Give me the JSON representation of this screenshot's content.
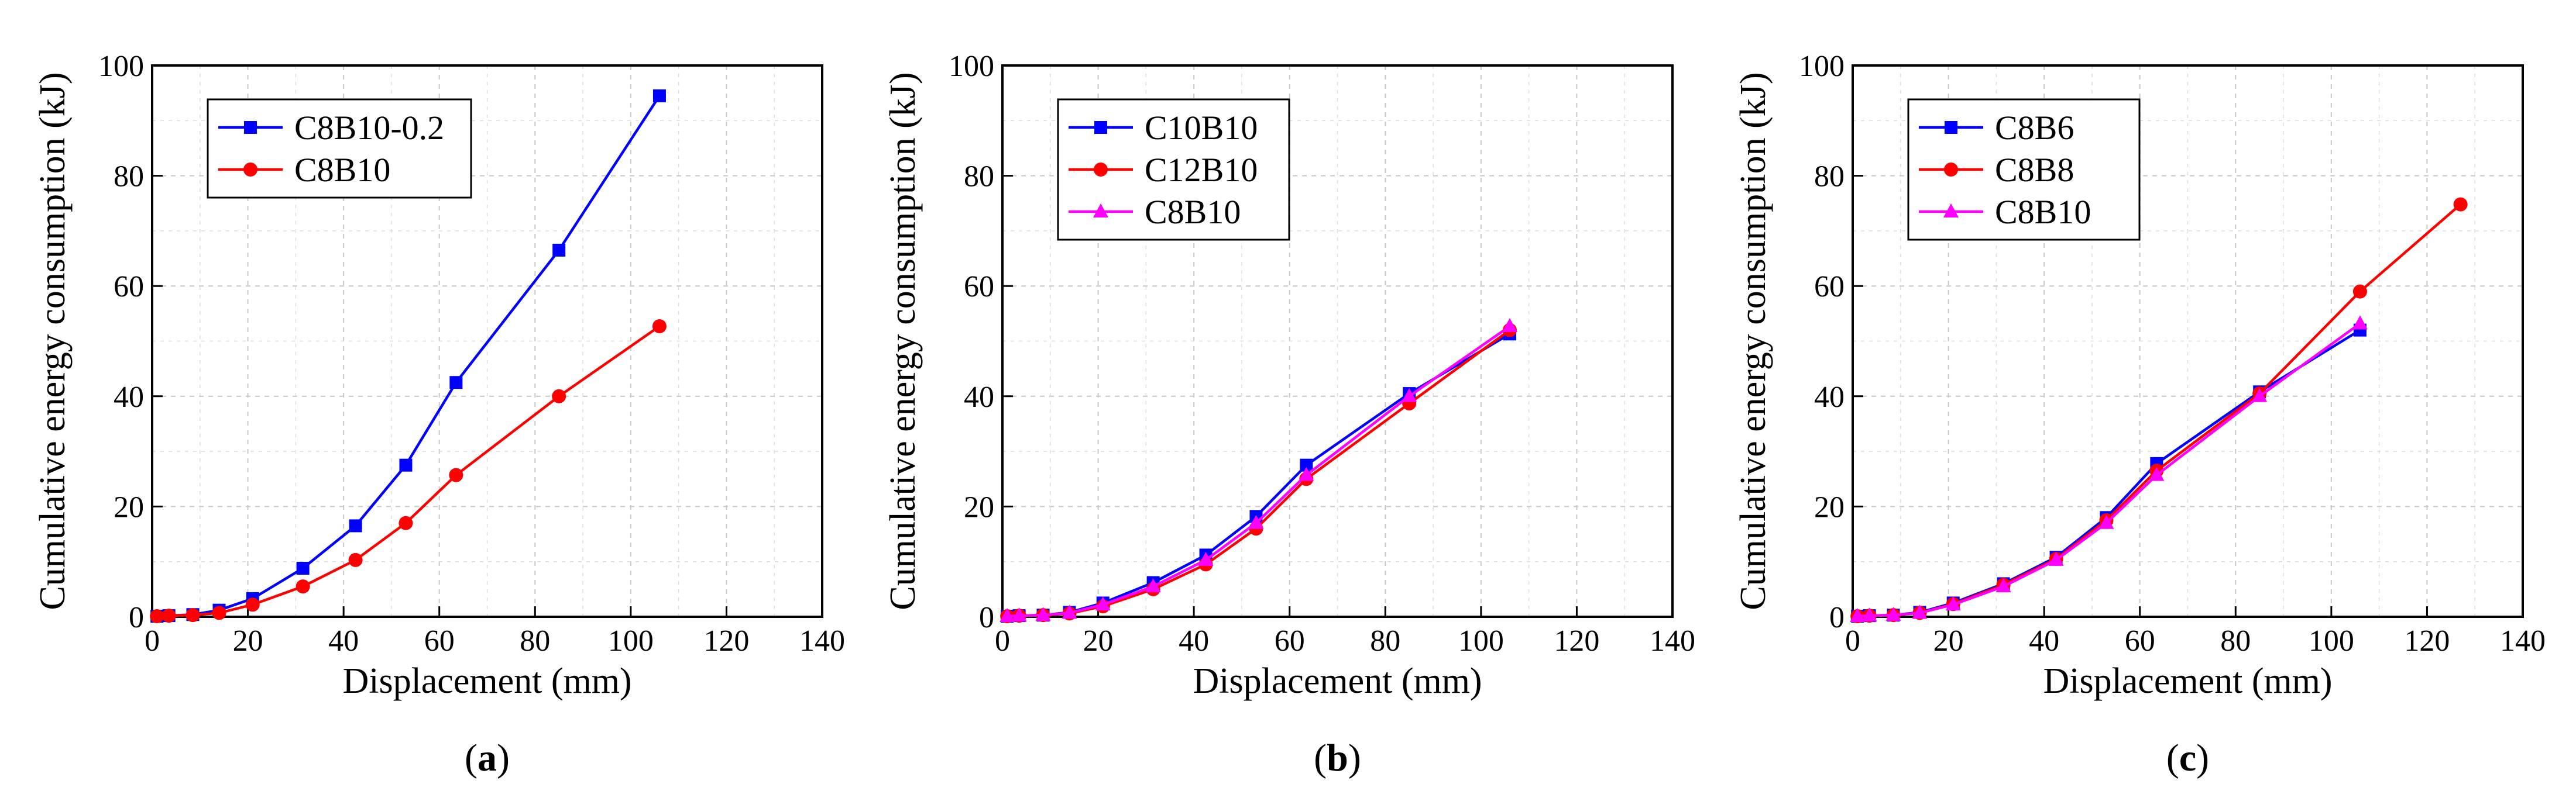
{
  "chart_data": [
    {
      "type": "line",
      "panel_label": "a",
      "xlabel": "Displacement (mm)",
      "ylabel": "Cumulative energy consumption (kJ)",
      "xlim": [
        0,
        140
      ],
      "ylim": [
        0,
        100
      ],
      "xticks": [
        0,
        20,
        40,
        60,
        80,
        100,
        120,
        140
      ],
      "yticks": [
        0,
        20,
        40,
        60,
        80,
        100
      ],
      "grid": true,
      "legend_position": "top-left",
      "series": [
        {
          "name": "C8B10-0.2",
          "color": "#0000ff",
          "marker": "square",
          "x": [
            1,
            3.5,
            8.5,
            14,
            21,
            31.5,
            42.5,
            53,
            63.5,
            85,
            106
          ],
          "y": [
            0.1,
            0.2,
            0.4,
            1.2,
            3.3,
            8.8,
            16.5,
            27.5,
            42.5,
            66.5,
            94.5
          ]
        },
        {
          "name": "C8B10",
          "color": "#ff0000",
          "marker": "circle",
          "x": [
            1,
            3.5,
            8.5,
            14,
            21,
            31.5,
            42.5,
            53,
            63.5,
            85,
            106
          ],
          "y": [
            0.1,
            0.2,
            0.3,
            0.7,
            2.2,
            5.5,
            10.3,
            17,
            25.7,
            40,
            52.7
          ]
        }
      ]
    },
    {
      "type": "line",
      "panel_label": "b",
      "xlabel": "Displacement (mm)",
      "ylabel": "Cumulative energy consumption (kJ)",
      "xlim": [
        0,
        140
      ],
      "ylim": [
        0,
        100
      ],
      "xticks": [
        0,
        20,
        40,
        60,
        80,
        100,
        120,
        140
      ],
      "yticks": [
        0,
        20,
        40,
        60,
        80,
        100
      ],
      "grid": true,
      "legend_position": "top-left",
      "series": [
        {
          "name": "C10B10",
          "color": "#0000ff",
          "marker": "square",
          "x": [
            1,
            3.5,
            8.5,
            14,
            21,
            31.5,
            42.5,
            53,
            63.5,
            85,
            106
          ],
          "y": [
            0.1,
            0.2,
            0.3,
            0.8,
            2.5,
            6.2,
            11.2,
            18.2,
            27.5,
            40.5,
            51.3
          ]
        },
        {
          "name": "C12B10",
          "color": "#ff0000",
          "marker": "circle",
          "x": [
            1,
            3.5,
            8.5,
            14,
            21,
            31.5,
            42.5,
            53,
            63.5,
            85,
            106
          ],
          "y": [
            0.1,
            0.2,
            0.3,
            0.6,
            1.9,
            5,
            9.5,
            16,
            25,
            38.7,
            52
          ]
        },
        {
          "name": "C8B10",
          "color": "#ff00ff",
          "marker": "triangle",
          "x": [
            1,
            3.5,
            8.5,
            14,
            21,
            31.5,
            42.5,
            53,
            63.5,
            85,
            106
          ],
          "y": [
            0.1,
            0.2,
            0.3,
            0.7,
            2.2,
            5.5,
            10.3,
            17,
            25.7,
            40,
            52.7
          ]
        }
      ]
    },
    {
      "type": "line",
      "panel_label": "c",
      "xlabel": "Displacement (mm)",
      "ylabel": "Cumulative energy consumption (kJ)",
      "xlim": [
        0,
        140
      ],
      "ylim": [
        0,
        100
      ],
      "xticks": [
        0,
        20,
        40,
        60,
        80,
        100,
        120,
        140
      ],
      "yticks": [
        0,
        20,
        40,
        60,
        80,
        100
      ],
      "grid": true,
      "legend_position": "top-left",
      "series": [
        {
          "name": "C8B6",
          "color": "#0000ff",
          "marker": "square",
          "x": [
            1,
            3.5,
            8.5,
            14,
            21,
            31.5,
            42.5,
            53,
            63.5,
            85,
            106
          ],
          "y": [
            0.1,
            0.2,
            0.3,
            0.8,
            2.5,
            6,
            10.8,
            18,
            27.8,
            40.8,
            52
          ]
        },
        {
          "name": "C8B8",
          "color": "#ff0000",
          "marker": "circle",
          "x": [
            1,
            3.5,
            8.5,
            14,
            21,
            31.5,
            42.5,
            53,
            63.5,
            85,
            106,
            127
          ],
          "y": [
            0.1,
            0.2,
            0.3,
            0.7,
            2.3,
            5.8,
            10.5,
            17.5,
            26.5,
            40.5,
            59,
            74.8
          ]
        },
        {
          "name": "C8B10",
          "color": "#ff00ff",
          "marker": "triangle",
          "x": [
            1,
            3.5,
            8.5,
            14,
            21,
            31.5,
            42.5,
            53,
            63.5,
            85,
            106
          ],
          "y": [
            0.1,
            0.2,
            0.3,
            0.7,
            2.2,
            5.5,
            10.3,
            17,
            25.7,
            40,
            53.2
          ]
        }
      ]
    }
  ]
}
